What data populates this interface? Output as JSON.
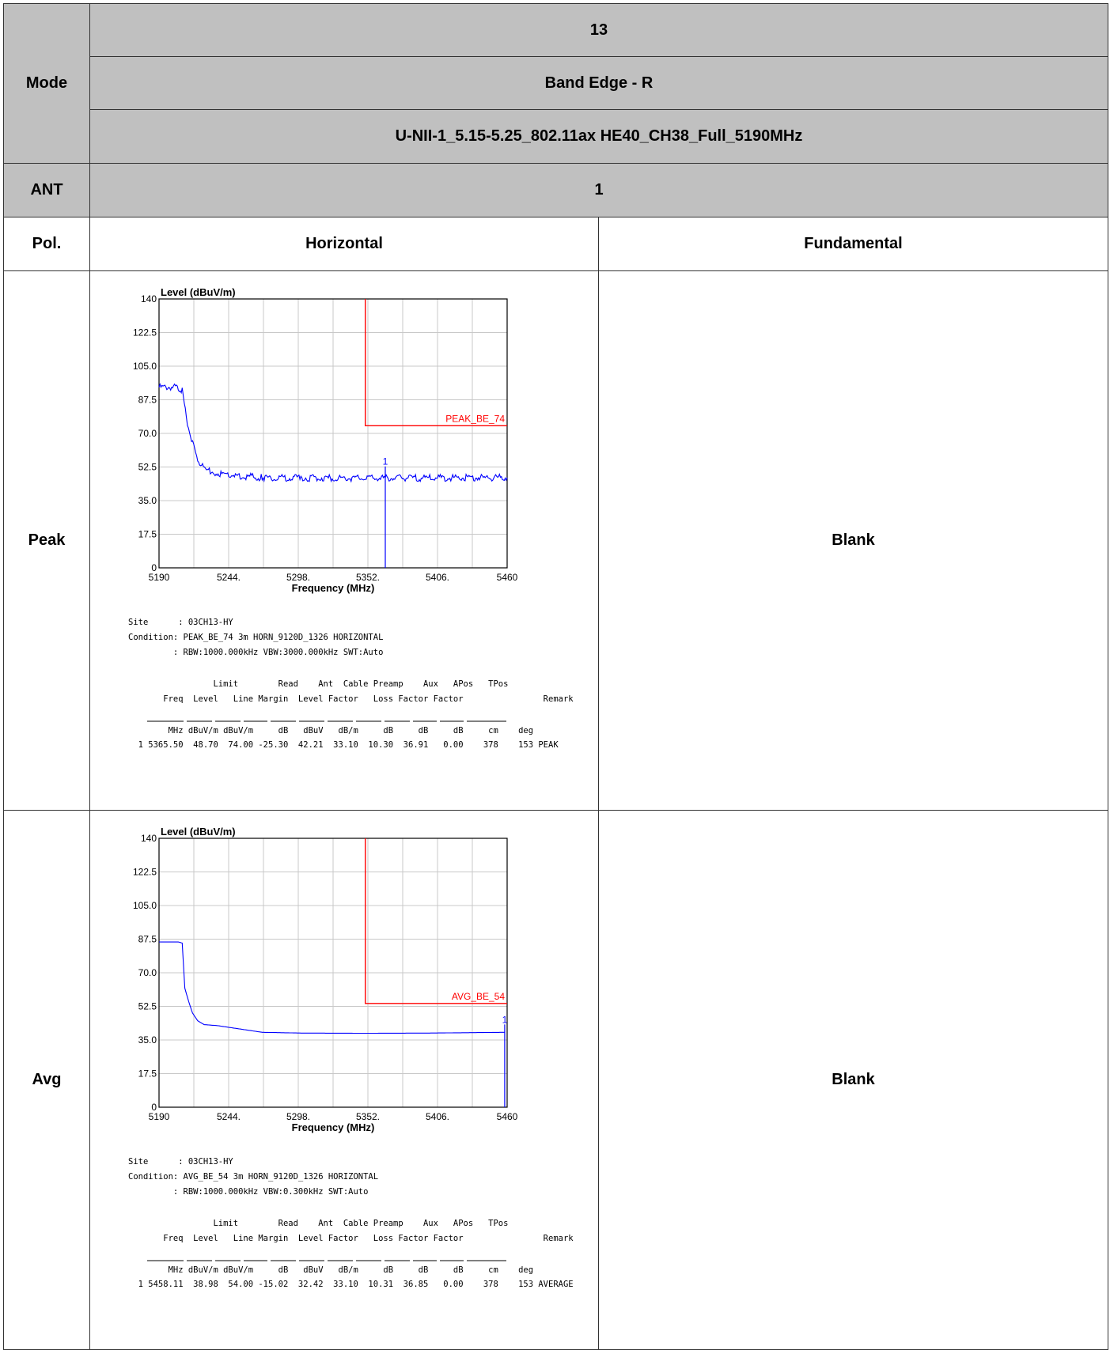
{
  "header": {
    "mode_label": "Mode",
    "row1": "13",
    "row2": "Band Edge - R",
    "row3": "U-NII-1_5.15-5.25_802.11ax HE40_CH38_Full_5190MHz",
    "ant_label": "ANT",
    "ant_value": "1",
    "pol_label": "Pol.",
    "pol_col1": "Horizontal",
    "pol_col2": "Fundamental"
  },
  "rows": [
    {
      "label": "Peak",
      "right": "Blank"
    },
    {
      "label": "Avg",
      "right": "Blank"
    }
  ],
  "chart_data": [
    {
      "type": "line",
      "ylabel": "Level (dBuV/m)",
      "xlabel": "Frequency (MHz)",
      "xlim": [
        5190,
        5460
      ],
      "ylim": [
        0,
        140
      ],
      "x_ticks": [
        "5190",
        "5244.",
        "5298.",
        "5352.",
        "5406.",
        "5460"
      ],
      "y_ticks": [
        "0",
        "17.5",
        "35.0",
        "52.5",
        "70.0",
        "87.5",
        "105.0",
        "122.5",
        "140"
      ],
      "grid": true,
      "series": [
        {
          "color": "#0000ff",
          "x": [
            5190,
            5205,
            5208,
            5212,
            5216,
            5220,
            5226,
            5235,
            5250,
            5270,
            5300,
            5350,
            5400,
            5460
          ],
          "y": [
            94,
            94,
            92,
            75,
            65,
            56,
            51,
            49,
            48,
            47,
            46.8,
            46.7,
            46.8,
            47
          ]
        }
      ],
      "limit": {
        "label": "PEAK_BE_74",
        "color": "#ff0000",
        "x_start": 5350,
        "y": 74
      },
      "marker": {
        "label": "1",
        "x": 5365.5,
        "y": 48.7
      },
      "info": {
        "site": "Site      : 03CH13-HY",
        "condition": "Condition: PEAK_BE_74 3m HORN_9120D_1326 HORIZONTAL",
        "rbw": "         : RBW:1000.000kHz VBW:3000.000kHz SWT:Auto",
        "head1": "                 Limit        Read    Ant  Cable Preamp    Aux   APos   TPos",
        "head2": "       Freq  Level   Line Margin  Level Factor   Loss Factor Factor                Remark",
        "units": "        MHz dBuV/m dBuV/m     dB   dBuV   dB/m     dB     dB     dB     cm    deg",
        "row": "  1 5365.50  48.70  74.00 -25.30  42.21  33.10  10.30  36.91   0.00    378    153 PEAK"
      }
    },
    {
      "type": "line",
      "ylabel": "Level (dBuV/m)",
      "xlabel": "Frequency (MHz)",
      "xlim": [
        5190,
        5460
      ],
      "ylim": [
        0,
        140
      ],
      "x_ticks": [
        "5190",
        "5244.",
        "5298.",
        "5352.",
        "5406.",
        "5460"
      ],
      "y_ticks": [
        "0",
        "17.5",
        "35.0",
        "52.5",
        "70.0",
        "87.5",
        "105.0",
        "122.5",
        "140"
      ],
      "grid": true,
      "series": [
        {
          "color": "#0000ff",
          "x": [
            5190,
            5205,
            5208,
            5210,
            5213,
            5216,
            5220,
            5225,
            5235,
            5250,
            5270,
            5300,
            5350,
            5400,
            5458
          ],
          "y": [
            86,
            86,
            85.5,
            62,
            55,
            49,
            45,
            43,
            42.5,
            41,
            39,
            38.6,
            38.5,
            38.6,
            39
          ]
        }
      ],
      "limit": {
        "label": "AVG_BE_54",
        "color": "#ff0000",
        "x_start": 5350,
        "y": 54
      },
      "marker": {
        "label": "1",
        "x": 5458.11,
        "y": 38.98
      },
      "info": {
        "site": "Site      : 03CH13-HY",
        "condition": "Condition: AVG_BE_54 3m HORN_9120D_1326 HORIZONTAL",
        "rbw": "         : RBW:1000.000kHz VBW:0.300kHz SWT:Auto",
        "head1": "                 Limit        Read    Ant  Cable Preamp    Aux   APos   TPos",
        "head2": "       Freq  Level   Line Margin  Level Factor   Loss Factor Factor                Remark",
        "units": "        MHz dBuV/m dBuV/m     dB   dBuV   dB/m     dB     dB     dB     cm    deg",
        "row": "  1 5458.11  38.98  54.00 -15.02  32.42  33.10  10.31  36.85   0.00    378    153 AVERAGE"
      }
    }
  ]
}
